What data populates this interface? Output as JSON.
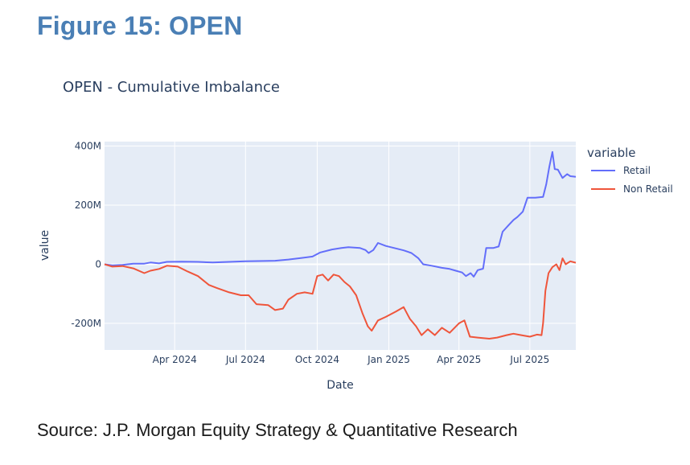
{
  "figure_title": "Figure 15: OPEN",
  "source": "Source: J.P. Morgan Equity Strategy & Quantitative Research",
  "chart_data": {
    "type": "line",
    "title": "OPEN - Cumulative Imbalance",
    "xlabel": "Date",
    "ylabel": "value",
    "x_ticks": [
      "Apr 2024",
      "Jul 2024",
      "Oct 2024",
      "Jan 2025",
      "Apr 2025",
      "Jul 2025"
    ],
    "y_ticks": [
      "-200M",
      "0",
      "200M",
      "400M"
    ],
    "y_tick_values": [
      -200,
      0,
      200,
      400
    ],
    "ylim": [
      -290,
      415
    ],
    "xlim": [
      "2024-01-02",
      "2025-08-29"
    ],
    "x_unit": "date",
    "y_unit": "millions",
    "legend_title": "variable",
    "legend_position": "right",
    "grid": true,
    "background": "#e5ecf6",
    "series": [
      {
        "name": "Retail",
        "color": "#636efa",
        "points": [
          [
            "2024-01-02",
            0
          ],
          [
            "2024-01-12",
            -4
          ],
          [
            "2024-01-25",
            -2
          ],
          [
            "2024-02-08",
            2
          ],
          [
            "2024-02-22",
            2
          ],
          [
            "2024-03-01",
            6
          ],
          [
            "2024-03-12",
            3
          ],
          [
            "2024-03-22",
            8
          ],
          [
            "2024-04-10",
            9
          ],
          [
            "2024-05-01",
            8
          ],
          [
            "2024-05-20",
            6
          ],
          [
            "2024-06-10",
            8
          ],
          [
            "2024-07-01",
            10
          ],
          [
            "2024-07-25",
            11
          ],
          [
            "2024-08-08",
            12
          ],
          [
            "2024-08-25",
            16
          ],
          [
            "2024-09-10",
            21
          ],
          [
            "2024-09-25",
            26
          ],
          [
            "2024-10-05",
            40
          ],
          [
            "2024-10-20",
            50
          ],
          [
            "2024-11-01",
            55
          ],
          [
            "2024-11-10",
            58
          ],
          [
            "2024-11-25",
            55
          ],
          [
            "2024-12-02",
            48
          ],
          [
            "2024-12-06",
            38
          ],
          [
            "2024-12-12",
            48
          ],
          [
            "2024-12-18",
            72
          ],
          [
            "2024-12-28",
            62
          ],
          [
            "2025-01-08",
            55
          ],
          [
            "2025-01-20",
            47
          ],
          [
            "2025-01-30",
            38
          ],
          [
            "2025-02-08",
            20
          ],
          [
            "2025-02-14",
            0
          ],
          [
            "2025-02-25",
            -5
          ],
          [
            "2025-03-10",
            -12
          ],
          [
            "2025-03-20",
            -16
          ],
          [
            "2025-03-28",
            -22
          ],
          [
            "2025-04-05",
            -28
          ],
          [
            "2025-04-10",
            -40
          ],
          [
            "2025-04-16",
            -30
          ],
          [
            "2025-04-20",
            -42
          ],
          [
            "2025-04-25",
            -20
          ],
          [
            "2025-05-02",
            -15
          ],
          [
            "2025-05-06",
            55
          ],
          [
            "2025-05-15",
            55
          ],
          [
            "2025-05-22",
            60
          ],
          [
            "2025-05-27",
            110
          ],
          [
            "2025-06-03",
            130
          ],
          [
            "2025-06-10",
            150
          ],
          [
            "2025-06-15",
            160
          ],
          [
            "2025-06-22",
            178
          ],
          [
            "2025-06-28",
            225
          ],
          [
            "2025-07-08",
            225
          ],
          [
            "2025-07-18",
            228
          ],
          [
            "2025-07-22",
            270
          ],
          [
            "2025-07-26",
            330
          ],
          [
            "2025-07-30",
            380
          ],
          [
            "2025-08-02",
            322
          ],
          [
            "2025-08-06",
            320
          ],
          [
            "2025-08-12",
            292
          ],
          [
            "2025-08-18",
            305
          ],
          [
            "2025-08-22",
            298
          ],
          [
            "2025-08-29",
            296
          ]
        ]
      },
      {
        "name": "Non Retail",
        "color": "#ef553b",
        "points": [
          [
            "2024-01-02",
            0
          ],
          [
            "2024-01-12",
            -8
          ],
          [
            "2024-01-25",
            -6
          ],
          [
            "2024-02-08",
            -14
          ],
          [
            "2024-02-22",
            -30
          ],
          [
            "2024-03-01",
            -22
          ],
          [
            "2024-03-12",
            -16
          ],
          [
            "2024-03-22",
            -5
          ],
          [
            "2024-04-05",
            -8
          ],
          [
            "2024-04-18",
            -25
          ],
          [
            "2024-05-01",
            -40
          ],
          [
            "2024-05-15",
            -70
          ],
          [
            "2024-05-25",
            -80
          ],
          [
            "2024-06-10",
            -95
          ],
          [
            "2024-06-25",
            -105
          ],
          [
            "2024-07-05",
            -105
          ],
          [
            "2024-07-15",
            -135
          ],
          [
            "2024-07-30",
            -138
          ],
          [
            "2024-08-08",
            -155
          ],
          [
            "2024-08-18",
            -150
          ],
          [
            "2024-08-25",
            -120
          ],
          [
            "2024-09-05",
            -100
          ],
          [
            "2024-09-15",
            -95
          ],
          [
            "2024-09-25",
            -100
          ],
          [
            "2024-10-01",
            -40
          ],
          [
            "2024-10-08",
            -35
          ],
          [
            "2024-10-15",
            -55
          ],
          [
            "2024-10-22",
            -35
          ],
          [
            "2024-10-29",
            -40
          ],
          [
            "2024-11-05",
            -60
          ],
          [
            "2024-11-12",
            -75
          ],
          [
            "2024-11-20",
            -105
          ],
          [
            "2024-11-28",
            -165
          ],
          [
            "2024-12-05",
            -210
          ],
          [
            "2024-12-10",
            -225
          ],
          [
            "2024-12-18",
            -190
          ],
          [
            "2024-12-28",
            -178
          ],
          [
            "2025-01-10",
            -160
          ],
          [
            "2025-01-20",
            -145
          ],
          [
            "2025-01-28",
            -185
          ],
          [
            "2025-02-05",
            -210
          ],
          [
            "2025-02-12",
            -240
          ],
          [
            "2025-02-20",
            -220
          ],
          [
            "2025-03-01",
            -240
          ],
          [
            "2025-03-10",
            -215
          ],
          [
            "2025-03-20",
            -232
          ],
          [
            "2025-04-01",
            -200
          ],
          [
            "2025-04-08",
            -190
          ],
          [
            "2025-04-15",
            -245
          ],
          [
            "2025-04-25",
            -248
          ],
          [
            "2025-05-10",
            -252
          ],
          [
            "2025-05-20",
            -248
          ],
          [
            "2025-06-01",
            -240
          ],
          [
            "2025-06-10",
            -235
          ],
          [
            "2025-06-20",
            -240
          ],
          [
            "2025-07-01",
            -245
          ],
          [
            "2025-07-10",
            -238
          ],
          [
            "2025-07-16",
            -240
          ],
          [
            "2025-07-18",
            -200
          ],
          [
            "2025-07-21",
            -90
          ],
          [
            "2025-07-25",
            -30
          ],
          [
            "2025-07-30",
            -10
          ],
          [
            "2025-08-04",
            0
          ],
          [
            "2025-08-08",
            -20
          ],
          [
            "2025-08-12",
            20
          ],
          [
            "2025-08-16",
            0
          ],
          [
            "2025-08-22",
            10
          ],
          [
            "2025-08-29",
            5
          ]
        ]
      }
    ]
  }
}
